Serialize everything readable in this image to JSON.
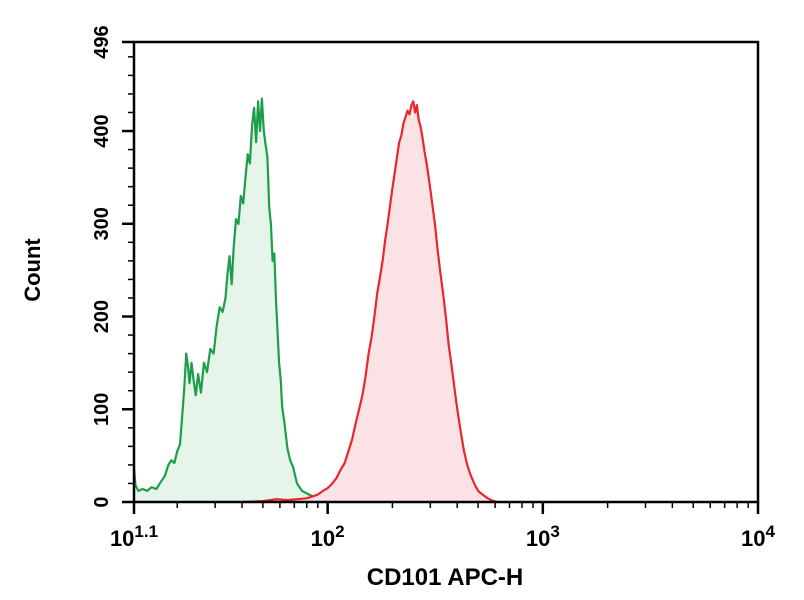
{
  "chart_data": {
    "type": "area",
    "title": "",
    "xlabel": "CD101 APC-H",
    "ylabel": "Count",
    "xscale": "log",
    "xlim": [
      12.59,
      10000
    ],
    "ylim": [
      0,
      496
    ],
    "grid": false,
    "legend": "none",
    "x_ticks": [
      {
        "value": 12.59,
        "base": "10",
        "exp": "1.1"
      },
      {
        "value": 100,
        "base": "10",
        "exp": "2"
      },
      {
        "value": 1000,
        "base": "10",
        "exp": "3"
      },
      {
        "value": 10000,
        "base": "10",
        "exp": "4"
      }
    ],
    "y_ticks": [
      {
        "value": 0,
        "label": "0"
      },
      {
        "value": 100,
        "label": "100"
      },
      {
        "value": 200,
        "label": "200"
      },
      {
        "value": 300,
        "label": "300"
      },
      {
        "value": 400,
        "label": "400"
      },
      {
        "value": 496,
        "label": "496"
      }
    ],
    "series": [
      {
        "color": "#1e9e4a",
        "fill": "#e6f5ea",
        "points": [
          [
            12.6,
            35
          ],
          [
            12.8,
            18
          ],
          [
            13.2,
            12
          ],
          [
            13.8,
            14
          ],
          [
            14.5,
            12
          ],
          [
            15.2,
            16
          ],
          [
            16.0,
            14
          ],
          [
            16.8,
            22
          ],
          [
            17.5,
            28
          ],
          [
            18.2,
            40
          ],
          [
            18.8,
            45
          ],
          [
            19.4,
            42
          ],
          [
            20.0,
            55
          ],
          [
            20.6,
            62
          ],
          [
            21.2,
            100
          ],
          [
            21.6,
            125
          ],
          [
            22.0,
            160
          ],
          [
            22.4,
            148
          ],
          [
            22.8,
            128
          ],
          [
            23.3,
            150
          ],
          [
            23.8,
            132
          ],
          [
            24.4,
            115
          ],
          [
            25.0,
            138
          ],
          [
            25.8,
            118
          ],
          [
            26.6,
            150
          ],
          [
            27.5,
            140
          ],
          [
            28.5,
            165
          ],
          [
            29.5,
            160
          ],
          [
            30.5,
            190
          ],
          [
            31.5,
            210
          ],
          [
            32.5,
            205
          ],
          [
            33.5,
            220
          ],
          [
            34.2,
            245
          ],
          [
            35.0,
            265
          ],
          [
            35.8,
            235
          ],
          [
            36.6,
            275
          ],
          [
            37.5,
            305
          ],
          [
            38.5,
            300
          ],
          [
            39.5,
            330
          ],
          [
            40.5,
            322
          ],
          [
            41.5,
            350
          ],
          [
            42.5,
            375
          ],
          [
            43.5,
            365
          ],
          [
            44.5,
            405
          ],
          [
            45.5,
            425
          ],
          [
            46.5,
            388
          ],
          [
            47.5,
            432
          ],
          [
            48.5,
            400
          ],
          [
            49.5,
            435
          ],
          [
            50.5,
            400
          ],
          [
            51.5,
            385
          ],
          [
            52.5,
            372
          ],
          [
            53.5,
            318
          ],
          [
            54.5,
            300
          ],
          [
            55.5,
            260
          ],
          [
            56.5,
            268
          ],
          [
            57.5,
            220
          ],
          [
            58.5,
            185
          ],
          [
            59.5,
            150
          ],
          [
            60.5,
            132
          ],
          [
            61.5,
            102
          ],
          [
            63.0,
            85
          ],
          [
            65.0,
            58
          ],
          [
            67.0,
            45
          ],
          [
            69.0,
            38
          ],
          [
            72.0,
            20
          ],
          [
            76.0,
            12
          ],
          [
            82.0,
            8
          ],
          [
            90.0,
            4
          ],
          [
            100.0,
            3
          ],
          [
            115.0,
            2
          ],
          [
            130.0,
            1
          ],
          [
            150.0,
            0
          ]
        ]
      },
      {
        "color": "#e8262d",
        "fill": "#fbe3e5",
        "points": [
          [
            40,
            0
          ],
          [
            50,
            1
          ],
          [
            58,
            3
          ],
          [
            65,
            2
          ],
          [
            72,
            3
          ],
          [
            80,
            4
          ],
          [
            85,
            6
          ],
          [
            90,
            8
          ],
          [
            95,
            12
          ],
          [
            100,
            15
          ],
          [
            105,
            20
          ],
          [
            110,
            26
          ],
          [
            115,
            35
          ],
          [
            120,
            42
          ],
          [
            125,
            55
          ],
          [
            130,
            68
          ],
          [
            135,
            85
          ],
          [
            140,
            100
          ],
          [
            145,
            115
          ],
          [
            150,
            135
          ],
          [
            155,
            160
          ],
          [
            160,
            178
          ],
          [
            165,
            200
          ],
          [
            170,
            225
          ],
          [
            175,
            242
          ],
          [
            180,
            260
          ],
          [
            185,
            282
          ],
          [
            190,
            300
          ],
          [
            195,
            320
          ],
          [
            200,
            338
          ],
          [
            205,
            355
          ],
          [
            210,
            372
          ],
          [
            215,
            388
          ],
          [
            220,
            395
          ],
          [
            225,
            408
          ],
          [
            230,
            415
          ],
          [
            235,
            422
          ],
          [
            240,
            418
          ],
          [
            245,
            428
          ],
          [
            250,
            432
          ],
          [
            255,
            420
          ],
          [
            260,
            428
          ],
          [
            265,
            412
          ],
          [
            270,
            405
          ],
          [
            275,
            395
          ],
          [
            282,
            378
          ],
          [
            290,
            362
          ],
          [
            298,
            342
          ],
          [
            306,
            322
          ],
          [
            315,
            300
          ],
          [
            325,
            270
          ],
          [
            335,
            245
          ],
          [
            345,
            222
          ],
          [
            355,
            198
          ],
          [
            365,
            170
          ],
          [
            375,
            150
          ],
          [
            385,
            130
          ],
          [
            395,
            110
          ],
          [
            405,
            92
          ],
          [
            418,
            72
          ],
          [
            430,
            55
          ],
          [
            445,
            40
          ],
          [
            460,
            30
          ],
          [
            480,
            20
          ],
          [
            500,
            12
          ],
          [
            525,
            8
          ],
          [
            555,
            4
          ],
          [
            590,
            1
          ],
          [
            620,
            0
          ]
        ]
      }
    ]
  }
}
